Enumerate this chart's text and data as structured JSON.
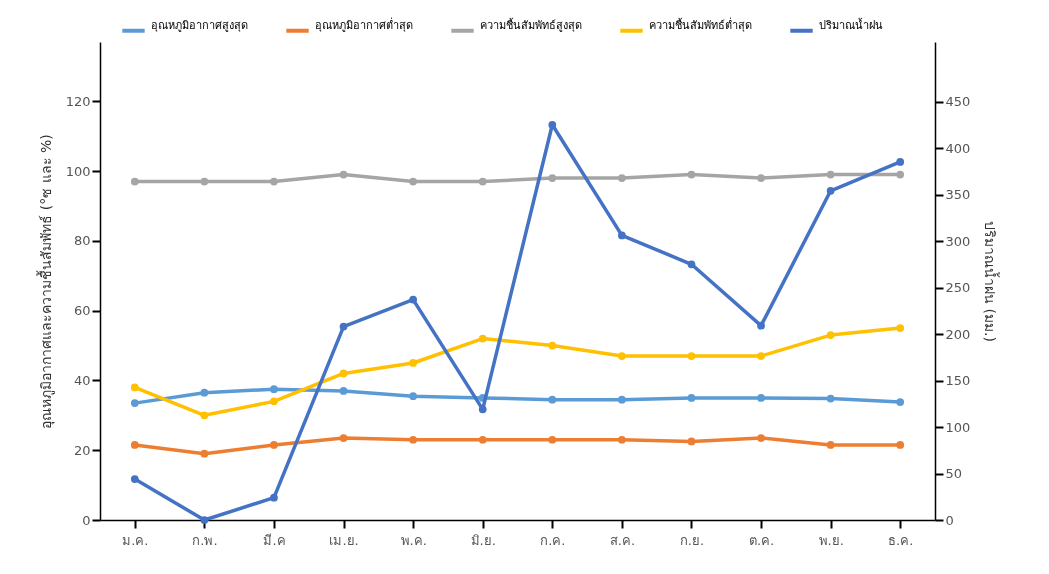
{
  "chart_data": {
    "type": "line",
    "ylabel": "อุณหภูมิอากาศและความชื้นสัมพัทธ์ (°ซ และ %)",
    "y2label": "ปริมาณน้ำฝน (มม.)",
    "categories": [
      "ม.ค.",
      "ก.พ.",
      "มี.ค",
      "เม.ย.",
      "พ.ค.",
      "มิ.ย.",
      "ก.ค.",
      "ส.ค.",
      "ก.ย.",
      "ต.ค.",
      "พ.ย.",
      "ธ.ค."
    ],
    "series": [
      {
        "name": "อุณหภูมิอากาศสูงสุด",
        "color": "#5b9bd5",
        "values": [
          33.5,
          36.5,
          37.5,
          37,
          35.5,
          35,
          34.5,
          34.5,
          35,
          35,
          34.8,
          33.8
        ]
      },
      {
        "name": "อุณหภูมิอากาศต่ำสุด",
        "color": "#ed7d31",
        "values": [
          21.5,
          19,
          21.5,
          23.5,
          23,
          23,
          23,
          23,
          22.5,
          23.5,
          21.5,
          21.5
        ]
      },
      {
        "name": "ความชื้นสัมพัทธ์สูงสุด",
        "color": "#a5a5a5",
        "values": [
          97,
          97,
          97,
          99,
          97,
          97,
          98,
          98,
          99,
          98,
          99,
          99
        ]
      },
      {
        "name": "ความชื้นสัมพัทธ์ต่ำสุด",
        "color": "#ffc000",
        "values": [
          38,
          30,
          34,
          42,
          45,
          52,
          50,
          47,
          47,
          47,
          53,
          55
        ]
      },
      {
        "name": "ปริมาณน้ำฝน",
        "color": "#4472c4",
        "axis": "y2",
        "values": [
          44,
          0,
          24,
          208,
          237,
          119,
          425,
          306,
          275,
          209,
          354,
          385
        ]
      }
    ],
    "ylim": [
      0,
      137
    ],
    "yticks": [
      0,
      20,
      40,
      60,
      80,
      100,
      120
    ],
    "y2lim": [
      0,
      514
    ],
    "y2ticks": [
      0,
      50,
      100,
      150,
      200,
      250,
      300,
      350,
      400,
      450
    ],
    "grid": false,
    "legend": "top",
    "marker": "circle",
    "line_style": "solid"
  }
}
